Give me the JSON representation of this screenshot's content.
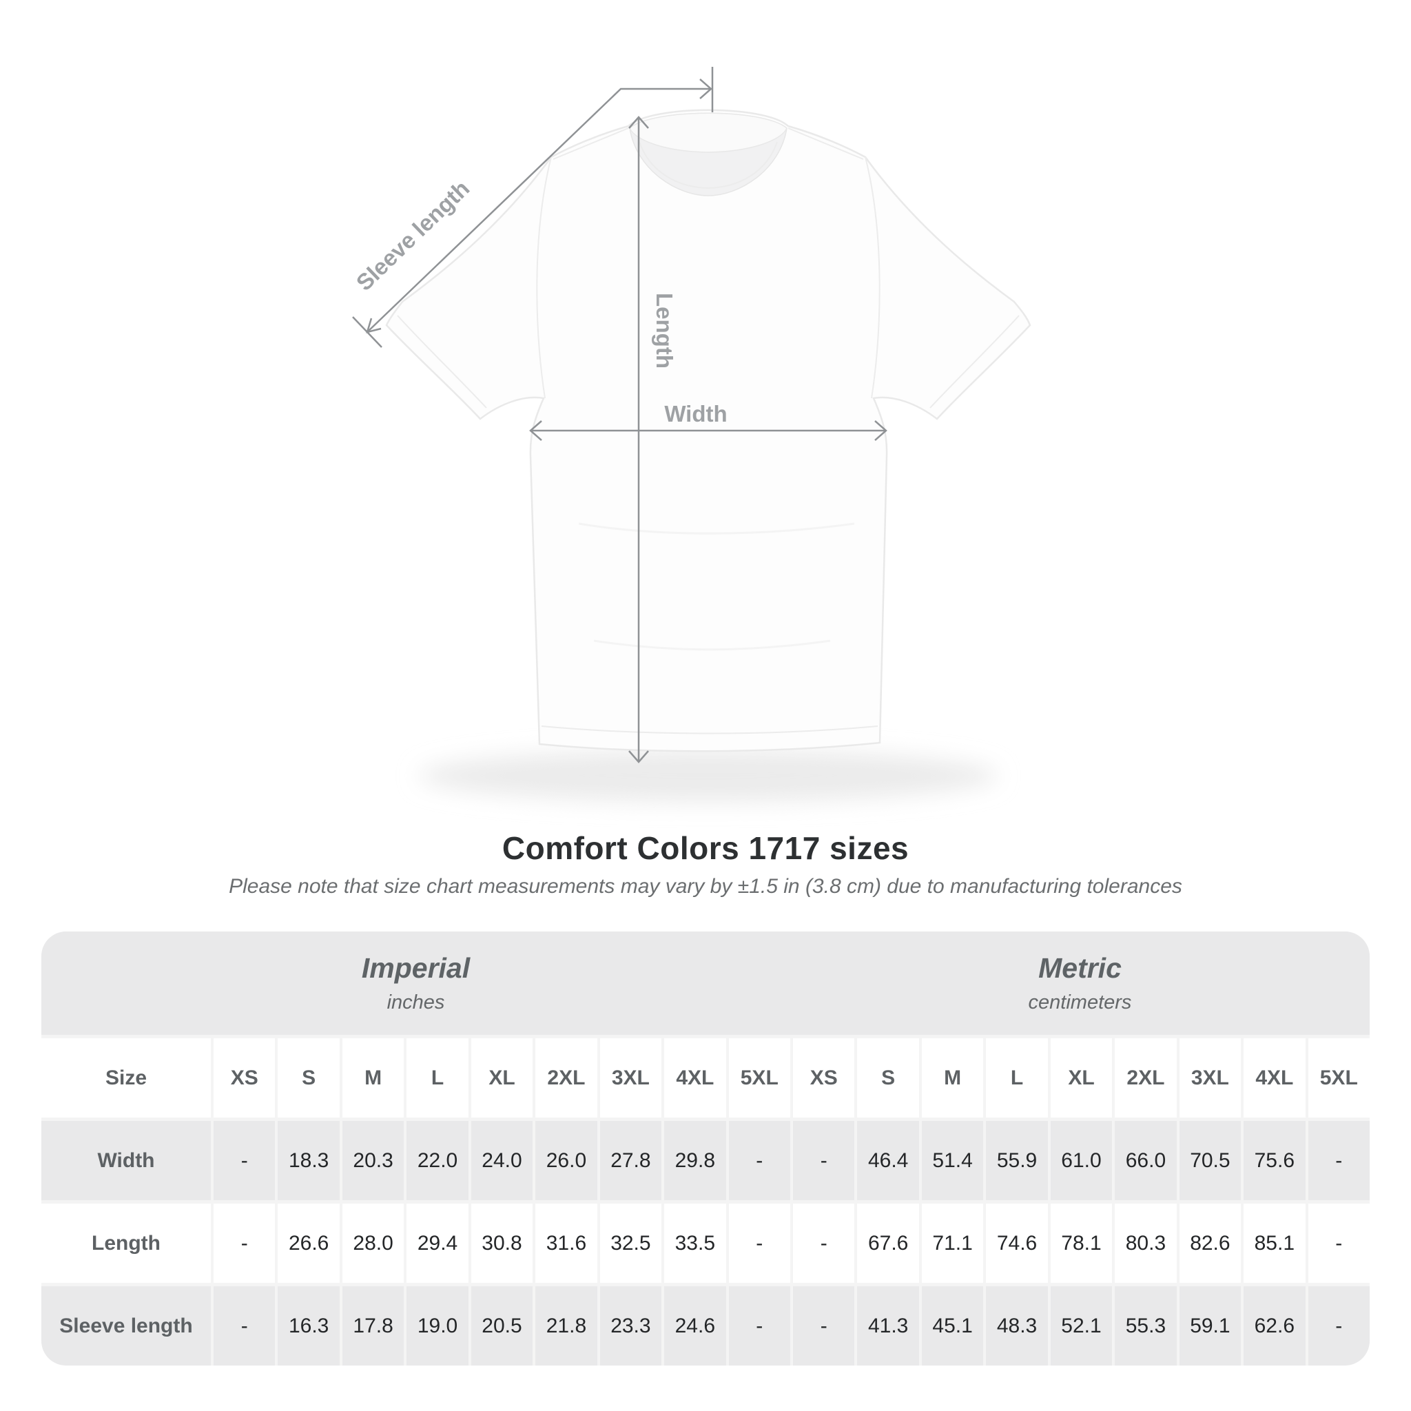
{
  "title": "Comfort Colors 1717 sizes",
  "subtitle": "Please note that size chart measurements may vary by ±1.5 in (3.8 cm) due to manufacturing tolerances",
  "diagram": {
    "sleeve_length_label": "Sleeve length",
    "length_label": "Length",
    "width_label": "Width"
  },
  "table": {
    "unit_headers": [
      {
        "name": "Imperial",
        "sub": "inches"
      },
      {
        "name": "Metric",
        "sub": "centimeters"
      }
    ],
    "size_label": "Size",
    "sizes": [
      "XS",
      "S",
      "M",
      "L",
      "XL",
      "2XL",
      "3XL",
      "4XL",
      "5XL"
    ],
    "rows": [
      {
        "label": "Width",
        "imperial": [
          "-",
          "18.3",
          "20.3",
          "22.0",
          "24.0",
          "26.0",
          "27.8",
          "29.8",
          "-"
        ],
        "metric": [
          "-",
          "46.4",
          "51.4",
          "55.9",
          "61.0",
          "66.0",
          "70.5",
          "75.6",
          "-"
        ]
      },
      {
        "label": "Length",
        "imperial": [
          "-",
          "26.6",
          "28.0",
          "29.4",
          "30.8",
          "31.6",
          "32.5",
          "33.5",
          "-"
        ],
        "metric": [
          "-",
          "67.6",
          "71.1",
          "74.6",
          "78.1",
          "80.3",
          "82.6",
          "85.1",
          "-"
        ]
      },
      {
        "label": "Sleeve length",
        "imperial": [
          "-",
          "16.3",
          "17.8",
          "19.0",
          "20.5",
          "21.8",
          "23.3",
          "24.6",
          "-"
        ],
        "metric": [
          "-",
          "41.3",
          "45.1",
          "48.3",
          "52.1",
          "55.3",
          "59.1",
          "62.6",
          "-"
        ]
      }
    ]
  },
  "colors": {
    "row_shade": "#e9e9ea",
    "header_text": "#5d6164",
    "number_text": "#242628",
    "annotation": "#8f9295",
    "title_text": "#2d3032"
  }
}
